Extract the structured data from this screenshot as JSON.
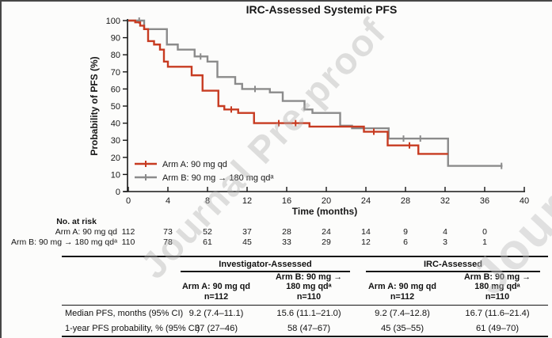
{
  "watermark": {
    "text": "Journal Pre-proof"
  },
  "chart_data": {
    "type": "line",
    "subtype": "kaplan-meier-step",
    "title": "IRC-Assessed Systemic PFS",
    "xlabel": "Time (months)",
    "ylabel": "Probability of PFS (%)",
    "xlim": [
      0,
      40
    ],
    "ylim": [
      0,
      100
    ],
    "xticks": [
      0,
      4,
      8,
      12,
      16,
      20,
      24,
      28,
      32,
      36,
      40
    ],
    "yticks": [
      0,
      10,
      20,
      30,
      40,
      50,
      60,
      70,
      80,
      90,
      100
    ],
    "grid": "off",
    "legend_position": "lower-left-inside",
    "series": [
      {
        "name": "Arm A: 90 mg qd",
        "color": "#c73b21",
        "points": [
          [
            0,
            100
          ],
          [
            0.7,
            99
          ],
          [
            1.2,
            97
          ],
          [
            1.6,
            95
          ],
          [
            2.0,
            88
          ],
          [
            2.6,
            86
          ],
          [
            3.2,
            83
          ],
          [
            3.6,
            76
          ],
          [
            4.0,
            73
          ],
          [
            6.4,
            68
          ],
          [
            7.5,
            59
          ],
          [
            9.1,
            50
          ],
          [
            9.7,
            48
          ],
          [
            11.1,
            46
          ],
          [
            12.7,
            40
          ],
          [
            18.3,
            38
          ],
          [
            23.8,
            35
          ],
          [
            26.2,
            27
          ],
          [
            29.3,
            22
          ],
          [
            32.3,
            22
          ]
        ],
        "censors": [
          [
            10.4,
            48
          ],
          [
            15.2,
            40
          ],
          [
            16.9,
            40
          ],
          [
            24.8,
            35
          ],
          [
            28.4,
            27
          ]
        ]
      },
      {
        "name": "Arm B: 90 mg → 180 mg qdᵃ",
        "color": "#8b8b8b",
        "points": [
          [
            0,
            100
          ],
          [
            1.6,
            95
          ],
          [
            3.9,
            86
          ],
          [
            5.0,
            83
          ],
          [
            6.7,
            79
          ],
          [
            8.0,
            76
          ],
          [
            9.0,
            67
          ],
          [
            10.8,
            63
          ],
          [
            11.5,
            60
          ],
          [
            14.3,
            58
          ],
          [
            15.6,
            53
          ],
          [
            17.8,
            48
          ],
          [
            18.6,
            46
          ],
          [
            21.4,
            38.5
          ],
          [
            22.6,
            37
          ],
          [
            26.3,
            31
          ],
          [
            32.3,
            15
          ],
          [
            37.8,
            15
          ]
        ],
        "censors": [
          [
            1.1,
            100
          ],
          [
            7.3,
            79
          ],
          [
            12.8,
            60
          ],
          [
            27.8,
            31
          ],
          [
            29.5,
            31
          ],
          [
            37.7,
            15
          ]
        ]
      }
    ]
  },
  "risk_table": {
    "heading": "No. at risk",
    "months": [
      0,
      4,
      8,
      12,
      16,
      20,
      24,
      28,
      32,
      36
    ],
    "rows": [
      {
        "label": "Arm A: 90 mg qd",
        "values": [
          "112",
          "73",
          "52",
          "37",
          "28",
          "24",
          "14",
          "9",
          "4",
          "0"
        ]
      },
      {
        "label": "Arm B: 90 mg → 180 mg qdᵃ",
        "values": [
          "110",
          "78",
          "61",
          "45",
          "33",
          "29",
          "12",
          "6",
          "3",
          "1"
        ]
      }
    ]
  },
  "summary_table": {
    "group_headers": [
      "Investigator-Assessed",
      "IRC-Assessed"
    ],
    "columns": [
      [
        "Arm A: 90 mg qd",
        "n=112"
      ],
      [
        "Arm B: 90 mg →",
        "180 mg qdᵃ",
        "n=110"
      ],
      [
        "Arm A: 90 mg qd",
        "n=112"
      ],
      [
        "Arm B: 90 mg →",
        "180 mg qdᵃ",
        "n=110"
      ]
    ],
    "rows": [
      {
        "label": "Median PFS, months (95% CI)",
        "values": [
          "9.2 (7.4–11.1)",
          "15.6 (11.1–21.0)",
          "9.2 (7.4–12.8)",
          "16.7 (11.6–21.4)"
        ]
      },
      {
        "label": "1-year PFS probability, % (95% CI)",
        "values": [
          "37 (27–46)",
          "58 (47–67)",
          "45 (35–55)",
          "61 (49–70)"
        ]
      }
    ]
  }
}
